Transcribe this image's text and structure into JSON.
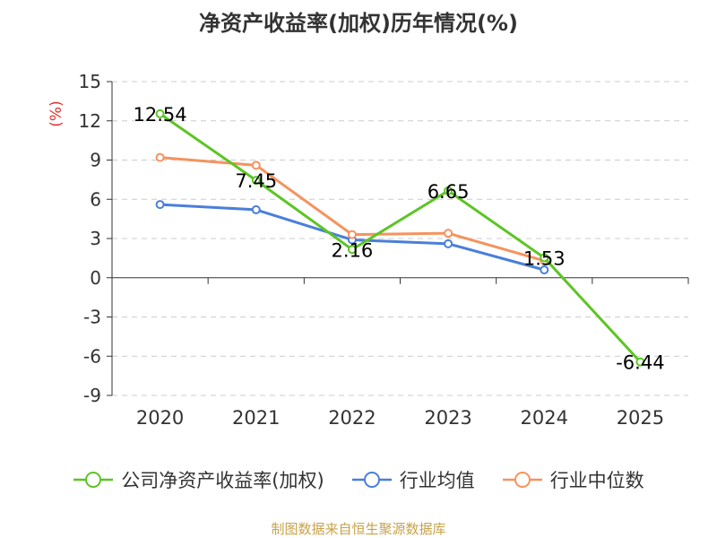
{
  "chart_data": {
    "type": "line",
    "title": "净资产收益率(加权)历年情况(%)",
    "ylabel": "(%)",
    "xlabel": "",
    "categories": [
      "2020",
      "2021",
      "2022",
      "2023",
      "2024",
      "2025"
    ],
    "ylim": [
      -9,
      15
    ],
    "yticks": [
      15,
      12,
      9,
      6,
      3,
      0,
      -3,
      -6,
      -9
    ],
    "series": [
      {
        "name": "公司净资产收益率(加权)",
        "color": "#5cc524",
        "values": [
          12.54,
          7.45,
          2.16,
          6.65,
          1.53,
          -6.44
        ],
        "labels": [
          "12.54",
          "7.45",
          "2.16",
          "6.65",
          "1.53",
          "-6.44"
        ]
      },
      {
        "name": "行业均值",
        "color": "#4a7fd9",
        "values": [
          5.6,
          5.2,
          2.9,
          2.6,
          0.6,
          null
        ]
      },
      {
        "name": "行业中位数",
        "color": "#f5935e",
        "values": [
          9.2,
          8.6,
          3.3,
          3.4,
          1.3,
          null
        ]
      }
    ]
  },
  "footer": "制图数据来自恒生聚源数据库"
}
